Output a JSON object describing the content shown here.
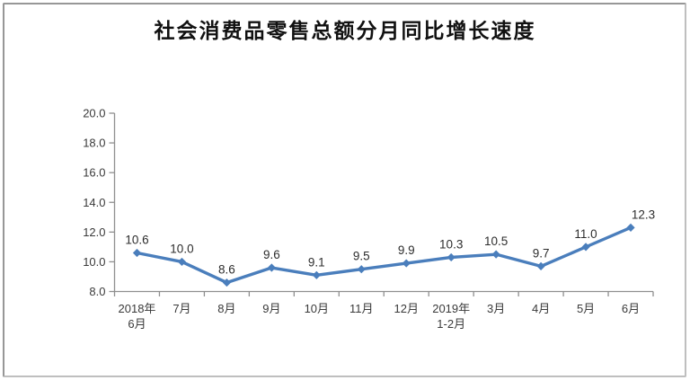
{
  "page": {
    "title": "社会消费品零售总额分月同比增长速度"
  },
  "chart_data": {
    "type": "line",
    "title": "社会消费品零售总额分月同比增长速度",
    "categories": [
      [
        "2018年",
        "6月"
      ],
      [
        "7月"
      ],
      [
        "8月"
      ],
      [
        "9月"
      ],
      [
        "10月"
      ],
      [
        "11月"
      ],
      [
        "12月"
      ],
      [
        "2019年",
        "1-2月"
      ],
      [
        "3月"
      ],
      [
        "4月"
      ],
      [
        "5月"
      ],
      [
        "6月"
      ]
    ],
    "series": [
      {
        "name": "同比增长速度",
        "values": [
          10.6,
          10.0,
          8.6,
          9.6,
          9.1,
          9.5,
          9.9,
          10.3,
          10.5,
          9.7,
          11.0,
          12.3
        ],
        "data_labels": [
          "10.6",
          "10.0",
          "8.6",
          "9.6",
          "9.1",
          "9.5",
          "9.9",
          "10.3",
          "10.5",
          "9.7",
          "11.0",
          "12.3"
        ]
      }
    ],
    "ylim": [
      8.0,
      20.0
    ],
    "ytick_step": 2.0,
    "ytick_labels": [
      "8.0",
      "10.0",
      "12.0",
      "14.0",
      "16.0",
      "18.0",
      "20.0"
    ],
    "xlabel": "",
    "ylabel": "",
    "grid": false,
    "legend": "none",
    "marker": "diamond",
    "colors": {
      "line": "#4a7ebc",
      "marker": "#4a7ebc",
      "axis": "#8f8f8f",
      "label": "#2d2d2d",
      "title": "#111111"
    }
  }
}
